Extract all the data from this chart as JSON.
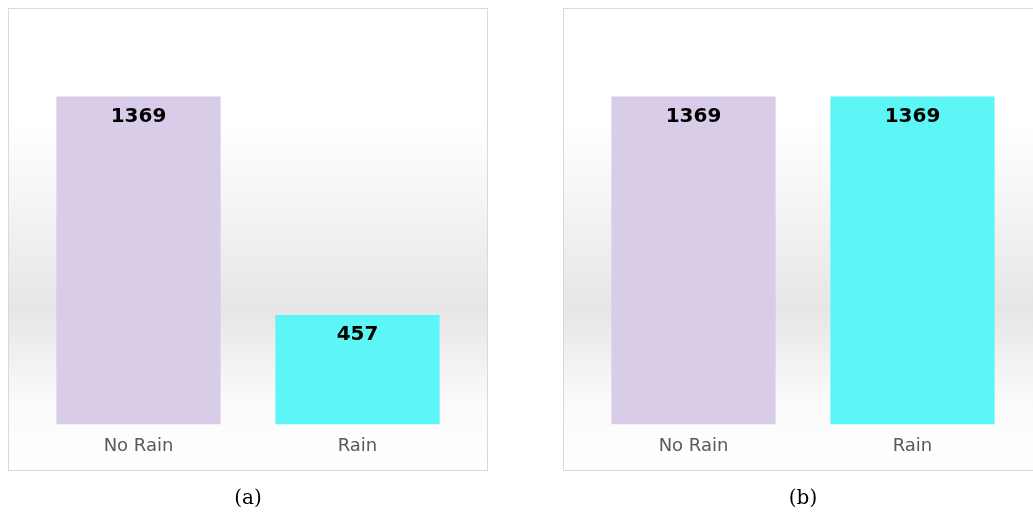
{
  "chart_data": [
    {
      "type": "bar",
      "title": "(a)",
      "categories": [
        "No Rain",
        "Rain"
      ],
      "values": [
        1369,
        457
      ],
      "colors": [
        "#d8cce8",
        "#5cf6f6"
      ],
      "data_labels": true
    },
    {
      "type": "bar",
      "title": "(b)",
      "categories": [
        "No Rain",
        "Rain"
      ],
      "values": [
        1369,
        1369
      ],
      "colors": [
        "#d8cce8",
        "#5cf6f6"
      ],
      "data_labels": true
    }
  ]
}
